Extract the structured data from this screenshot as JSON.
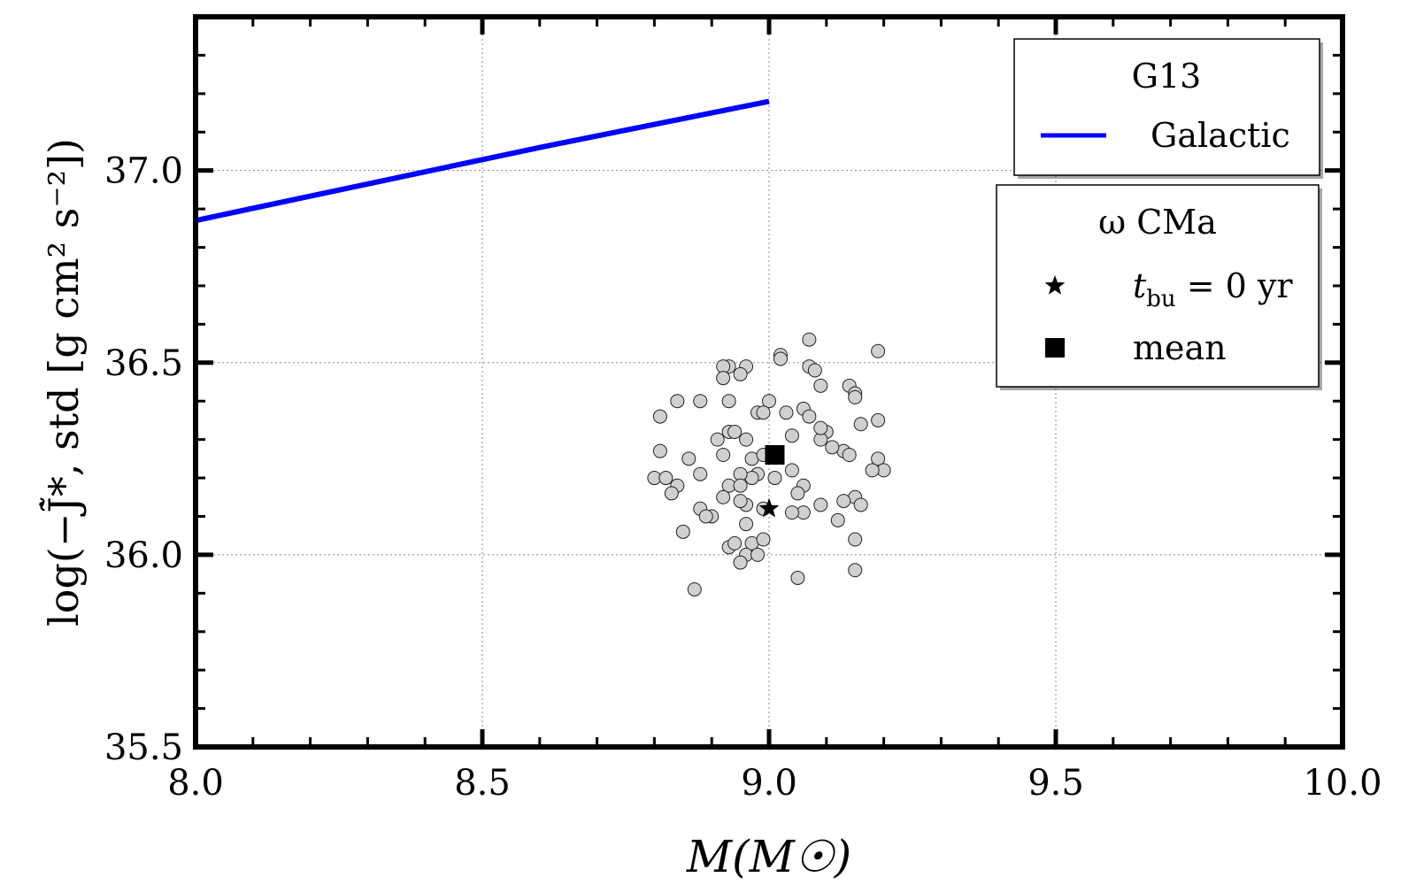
{
  "chart_data": {
    "type": "scatter",
    "xlabel": "M(M☉)",
    "ylabel": "log(−J̃̇*, std [g cm² s⁻²])",
    "xlim": [
      8.0,
      10.0
    ],
    "ylim": [
      35.5,
      37.4
    ],
    "x_ticks": [
      8.0,
      8.5,
      9.0,
      9.5,
      10.0
    ],
    "x_tick_labels": [
      "8.0",
      "8.5",
      "9.0",
      "9.5",
      "10.0"
    ],
    "y_ticks": [
      35.5,
      36.0,
      36.5,
      37.0
    ],
    "y_tick_labels": [
      "35.5",
      "36.0",
      "36.5",
      "37.0"
    ],
    "grid": true,
    "legend_g13": {
      "title": "G13",
      "entries": [
        {
          "label": "Galactic",
          "color": "#0000ff"
        }
      ]
    },
    "legend_star": {
      "title": "ω CMa",
      "entries": [
        {
          "label": "t_bu = 0 yr",
          "label_sym": "t",
          "label_sub": "bu",
          "label_rest": " = 0 yr",
          "marker": "star"
        },
        {
          "label": "mean",
          "marker": "square"
        }
      ]
    },
    "series": [
      {
        "name": "Galactic",
        "type": "line",
        "color": "#0000ff",
        "x": [
          8.0,
          8.6,
          9.0
        ],
        "y": [
          36.87,
          37.06,
          37.18
        ]
      },
      {
        "name": "samples",
        "type": "scatter",
        "color": "#d0d0d0",
        "x": [
          9.07,
          9.19,
          8.93,
          8.96,
          9.02,
          9.02,
          8.92,
          8.92,
          8.95,
          9.07,
          9.08,
          9.14,
          9.15,
          9.15,
          9.0,
          8.84,
          8.88,
          8.93,
          9.06,
          8.98,
          8.99,
          9.09,
          8.81,
          9.19,
          9.03,
          9.07,
          9.16,
          8.93,
          8.94,
          8.91,
          8.96,
          9.1,
          9.09,
          9.09,
          8.97,
          9.04,
          9.13,
          8.81,
          8.86,
          8.99,
          9.11,
          9.14,
          9.19,
          9.2,
          8.92,
          8.88,
          8.98,
          9.04,
          8.8,
          8.82,
          8.84,
          8.97,
          8.95,
          9.01,
          9.15,
          8.93,
          8.95,
          8.83,
          9.06,
          9.05,
          9.18,
          8.92,
          8.96,
          8.9,
          8.95,
          8.99,
          9.09,
          9.06,
          9.13,
          9.16,
          8.88,
          8.89,
          9.04,
          8.96,
          9.12,
          8.85,
          8.97,
          8.99,
          9.15,
          8.93,
          8.94,
          8.96,
          8.98,
          8.95,
          9.15,
          8.87,
          9.05
        ],
        "y": [
          36.56,
          36.53,
          36.49,
          36.49,
          36.52,
          36.51,
          36.49,
          36.46,
          36.47,
          36.49,
          36.48,
          36.44,
          36.42,
          36.41,
          36.4,
          36.4,
          36.4,
          36.4,
          36.38,
          36.37,
          36.37,
          36.44,
          36.36,
          36.35,
          36.37,
          36.36,
          36.34,
          36.32,
          36.32,
          36.3,
          36.3,
          36.32,
          36.3,
          36.33,
          36.25,
          36.31,
          36.27,
          36.27,
          36.25,
          36.26,
          36.28,
          36.26,
          36.25,
          36.22,
          36.26,
          36.21,
          36.21,
          36.22,
          36.2,
          36.2,
          36.18,
          36.2,
          36.21,
          36.2,
          36.15,
          36.18,
          36.18,
          36.16,
          36.18,
          36.16,
          36.22,
          36.15,
          36.13,
          36.1,
          36.14,
          36.12,
          36.13,
          36.11,
          36.14,
          36.13,
          36.12,
          36.1,
          36.11,
          36.08,
          36.09,
          36.06,
          36.03,
          36.04,
          36.04,
          36.02,
          36.03,
          36.0,
          36.0,
          35.98,
          35.96,
          35.91,
          35.94
        ]
      },
      {
        "name": "t_bu = 0 yr",
        "type": "scatter",
        "marker": "star",
        "color": "#000000",
        "x": [
          9.0
        ],
        "y": [
          36.12
        ]
      },
      {
        "name": "mean",
        "type": "scatter",
        "marker": "square",
        "color": "#000000",
        "x": [
          9.01
        ],
        "y": [
          36.26
        ]
      }
    ]
  }
}
